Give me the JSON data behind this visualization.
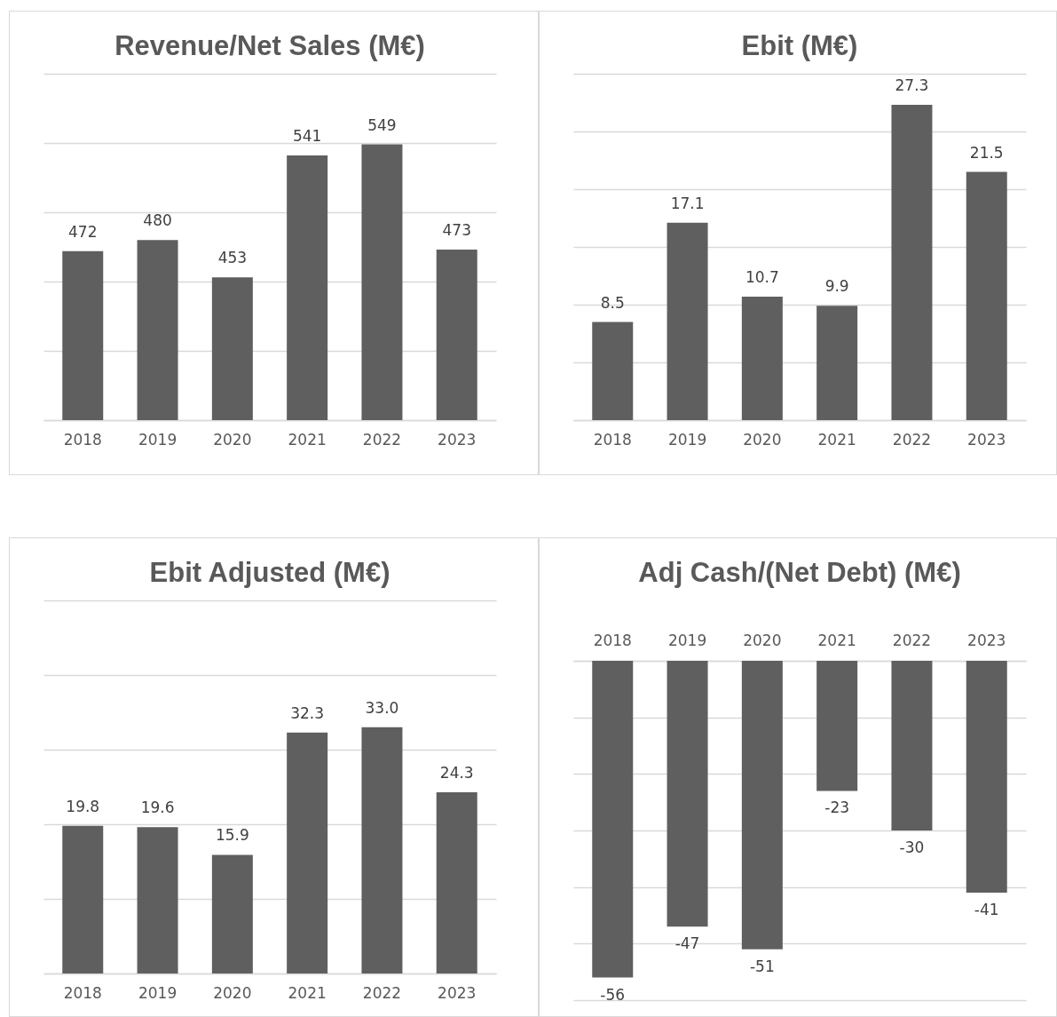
{
  "chart_data": [
    {
      "type": "bar",
      "title": "Revenue/Net Sales (M€)",
      "categories": [
        "2018",
        "2019",
        "2020",
        "2021",
        "2022",
        "2023"
      ],
      "values": [
        472,
        480,
        453,
        541,
        549,
        473
      ],
      "color": "#5f5f5f",
      "ylim": [
        350,
        600
      ],
      "yticks": [
        350,
        400,
        450,
        500,
        550,
        600
      ],
      "grid": "y",
      "tick_labels": "x",
      "data_labels": true
    },
    {
      "type": "bar",
      "title": "Ebit (M€)",
      "categories": [
        "2018",
        "2019",
        "2020",
        "2021",
        "2022",
        "2023"
      ],
      "values": [
        8.5,
        17.1,
        10.7,
        9.9,
        27.3,
        21.5
      ],
      "color": "#5f5f5f",
      "ylim": [
        0,
        30
      ],
      "yticks": [
        0,
        5,
        10,
        15,
        20,
        25,
        30
      ],
      "grid": "y",
      "tick_labels": "x",
      "data_labels": true
    },
    {
      "type": "bar",
      "title": "Ebit Adjusted (M€)",
      "categories": [
        "2018",
        "2019",
        "2020",
        "2021",
        "2022",
        "2023"
      ],
      "values": [
        19.8,
        19.6,
        15.9,
        32.3,
        33,
        24.3
      ],
      "value_labels": [
        "19.8",
        "19.6",
        "15.9",
        "32.3",
        "33.0",
        "24.3"
      ],
      "color": "#5f5f5f",
      "ylim": [
        0,
        50
      ],
      "yticks": [
        0,
        10,
        20,
        30,
        40,
        50
      ],
      "grid": "y",
      "tick_labels": "x"
    },
    {
      "type": "bar",
      "title": "Adj Cash/(Net Debt) (M€)",
      "categories": [
        "2018",
        "2019",
        "2020",
        "2021",
        "2022",
        "2023"
      ],
      "values": [
        -56,
        -47,
        -51,
        -23,
        -30,
        -41
      ],
      "color": "#5f5f5f",
      "ylim": [
        -60,
        0
      ],
      "yticks": [
        -60,
        -50,
        -40,
        -30,
        -20,
        -10,
        0
      ],
      "grid": "y",
      "tick_labels": "x",
      "data_labels": true
    }
  ]
}
